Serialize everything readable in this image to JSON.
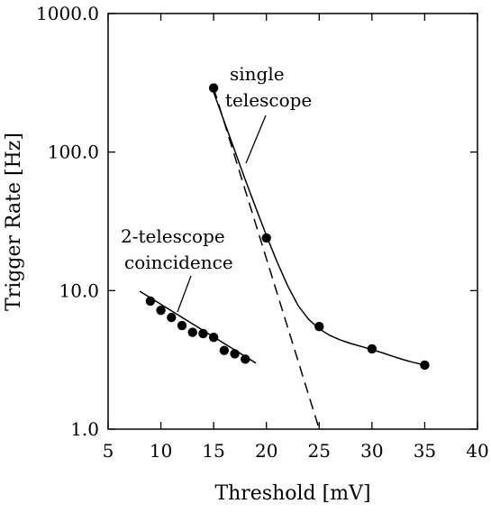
{
  "chart_data": {
    "type": "scatter",
    "xlabel": "Threshold [mV]",
    "ylabel": "Trigger Rate [Hz]",
    "x_ticks": [
      "5",
      "10",
      "15",
      "20",
      "25",
      "30",
      "35",
      "40"
    ],
    "y_ticks": [
      "1.0",
      "10.0",
      "100.0",
      "1000.0"
    ],
    "xlim": [
      5,
      40
    ],
    "ylim": [
      1,
      1000
    ],
    "y_scale": "log",
    "grid": false,
    "series": [
      {
        "name": "single telescope",
        "x": [
          15,
          20,
          25,
          30,
          35
        ],
        "y": [
          290,
          24,
          5.5,
          3.8,
          2.9
        ]
      },
      {
        "name": "2-telescope coincidence",
        "x": [
          9,
          10,
          11,
          12,
          13,
          14,
          15,
          16,
          17,
          18
        ],
        "y": [
          8.4,
          7.2,
          6.4,
          5.6,
          5.0,
          4.9,
          4.6,
          3.7,
          3.5,
          3.2
        ]
      }
    ],
    "fit_curves": [
      {
        "series": "single telescope",
        "style": "solid",
        "x": [
          15,
          16,
          17,
          18,
          19,
          20,
          21,
          22,
          23,
          24,
          25,
          26,
          27,
          28,
          29,
          30,
          31,
          32,
          33,
          34,
          35
        ],
        "y": [
          270,
          166,
          102,
          63,
          39.5,
          25,
          16.2,
          10.9,
          7.8,
          6.2,
          5.3,
          4.75,
          4.4,
          4.15,
          3.95,
          3.75,
          3.55,
          3.35,
          3.17,
          3.02,
          2.9
        ]
      },
      {
        "series": "single telescope",
        "style": "dashed",
        "x": [
          15,
          25
        ],
        "y": [
          290,
          1
        ]
      },
      {
        "series": "2-telescope coincidence",
        "style": "solid",
        "x": [
          8,
          19
        ],
        "y": [
          9.9,
          3.0
        ]
      }
    ],
    "annotations": [
      {
        "lines": [
          "single",
          "telescope"
        ]
      },
      {
        "lines": [
          "2-telescope",
          "coincidence"
        ]
      }
    ]
  }
}
